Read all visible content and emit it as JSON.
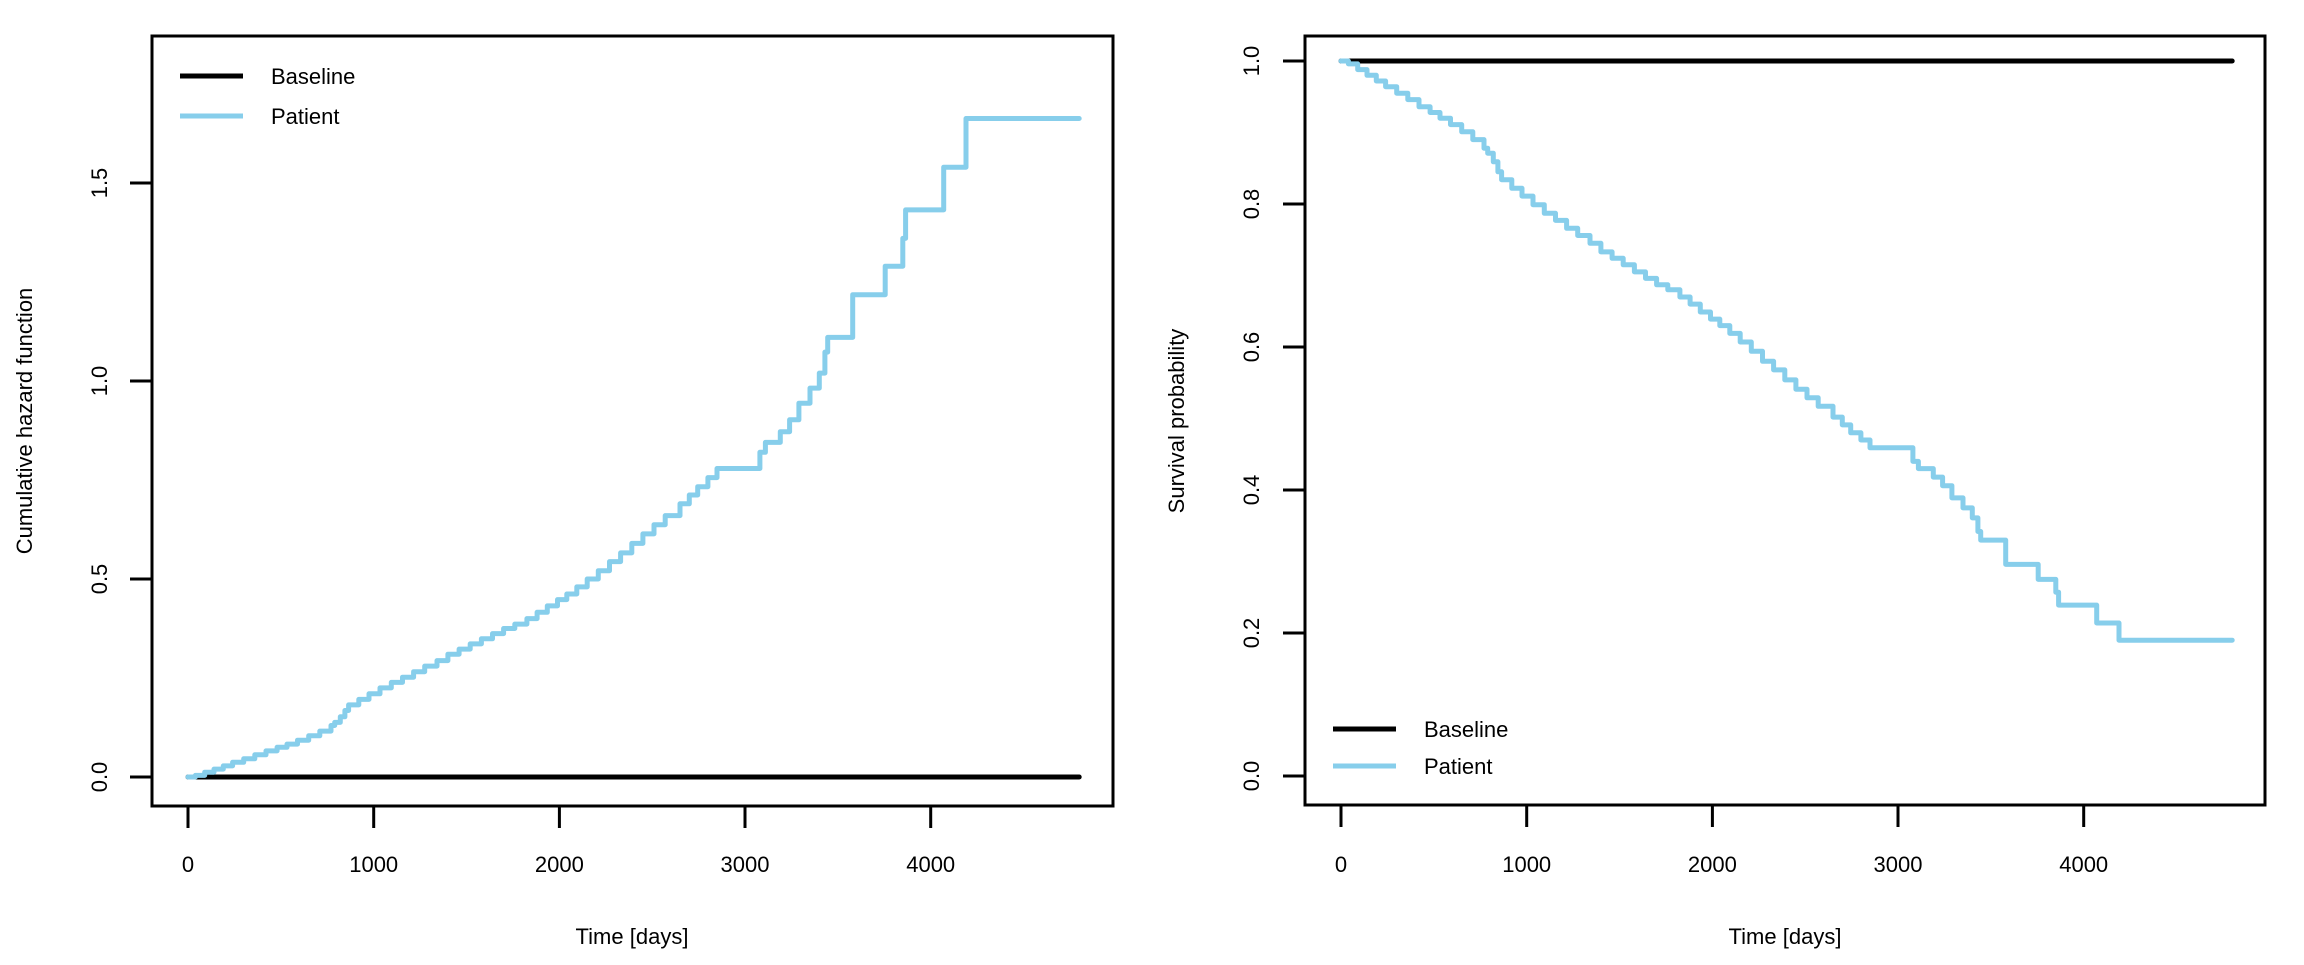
{
  "figure": {
    "background": "#ffffff",
    "line_colors": {
      "baseline": "#000000",
      "patient": "#87CEEB"
    }
  },
  "chart_data": [
    {
      "type": "line",
      "id": "cumulative-hazard",
      "title": "",
      "xlabel": "Time [days]",
      "ylabel": "Cumulative hazard function",
      "xlim": [
        0,
        4800
      ],
      "ylim": [
        0,
        1.88
      ],
      "grid": false,
      "xticks": [
        0,
        1000,
        2000,
        3000,
        4000
      ],
      "xtick_labels": [
        "0",
        "1000",
        "2000",
        "3000",
        "4000"
      ],
      "yticks": [
        0.0,
        0.5,
        1.0,
        1.5
      ],
      "ytick_labels": [
        "0.0",
        "0.5",
        "1.0",
        "1.5"
      ],
      "legend": {
        "position": "top-left",
        "entries": [
          {
            "label": "Baseline",
            "color": "#000000"
          },
          {
            "label": "Patient",
            "color": "#87CEEB"
          }
        ]
      },
      "series": [
        {
          "name": "Baseline",
          "color": "#000000",
          "step": false,
          "points": [
            [
              0,
              0
            ],
            [
              4800,
              0
            ]
          ]
        },
        {
          "name": "Patient",
          "color": "#87CEEB",
          "step": true,
          "points": [
            [
              0,
              0
            ],
            [
              40,
              0.004
            ],
            [
              90,
              0.012
            ],
            [
              140,
              0.02
            ],
            [
              190,
              0.028
            ],
            [
              240,
              0.037
            ],
            [
              300,
              0.046
            ],
            [
              360,
              0.056
            ],
            [
              420,
              0.066
            ],
            [
              480,
              0.075
            ],
            [
              533,
              0.083
            ],
            [
              590,
              0.093
            ],
            [
              650,
              0.104
            ],
            [
              710,
              0.116
            ],
            [
              770,
              0.13
            ],
            [
              790,
              0.138
            ],
            [
              820,
              0.152
            ],
            [
              845,
              0.168
            ],
            [
              865,
              0.182
            ],
            [
              920,
              0.196
            ],
            [
              975,
              0.21
            ],
            [
              1034,
              0.225
            ],
            [
              1095,
              0.239
            ],
            [
              1155,
              0.252
            ],
            [
              1215,
              0.266
            ],
            [
              1275,
              0.28
            ],
            [
              1341,
              0.294
            ],
            [
              1400,
              0.31
            ],
            [
              1460,
              0.323
            ],
            [
              1520,
              0.336
            ],
            [
              1580,
              0.349
            ],
            [
              1640,
              0.362
            ],
            [
              1700,
              0.375
            ],
            [
              1760,
              0.386
            ],
            [
              1825,
              0.4
            ],
            [
              1880,
              0.416
            ],
            [
              1935,
              0.432
            ],
            [
              1990,
              0.448
            ],
            [
              2040,
              0.462
            ],
            [
              2094,
              0.48
            ],
            [
              2150,
              0.5
            ],
            [
              2210,
              0.521
            ],
            [
              2270,
              0.544
            ],
            [
              2330,
              0.566
            ],
            [
              2390,
              0.59
            ],
            [
              2450,
              0.614
            ],
            [
              2510,
              0.637
            ],
            [
              2570,
              0.66
            ],
            [
              2650,
              0.69
            ],
            [
              2700,
              0.712
            ],
            [
              2745,
              0.733
            ],
            [
              2800,
              0.756
            ],
            [
              2849,
              0.779
            ],
            [
              3080,
              0.82
            ],
            [
              3110,
              0.845
            ],
            [
              3190,
              0.872
            ],
            [
              3240,
              0.902
            ],
            [
              3290,
              0.944
            ],
            [
              3350,
              0.982
            ],
            [
              3400,
              1.02
            ],
            [
              3430,
              1.073
            ],
            [
              3445,
              1.11
            ],
            [
              3580,
              1.218
            ],
            [
              3755,
              1.29
            ],
            [
              3850,
              1.36
            ],
            [
              3865,
              1.432
            ],
            [
              4070,
              1.54
            ],
            [
              4190,
              1.663
            ],
            [
              4800,
              1.663
            ]
          ]
        }
      ]
    },
    {
      "type": "line",
      "id": "survival-probability",
      "title": "",
      "xlabel": "Time [days]",
      "ylabel": "Survival probability",
      "xlim": [
        0,
        4800
      ],
      "ylim": [
        0,
        1.04
      ],
      "grid": false,
      "xticks": [
        0,
        1000,
        2000,
        3000,
        4000
      ],
      "xtick_labels": [
        "0",
        "1000",
        "2000",
        "3000",
        "4000"
      ],
      "yticks": [
        0.0,
        0.2,
        0.4,
        0.6,
        0.8,
        1.0
      ],
      "ytick_labels": [
        "0.0",
        "0.2",
        "0.4",
        "0.6",
        "0.8",
        "1.0"
      ],
      "legend": {
        "position": "bottom-left",
        "entries": [
          {
            "label": "Baseline",
            "color": "#000000"
          },
          {
            "label": "Patient",
            "color": "#87CEEB"
          }
        ]
      },
      "series": [
        {
          "name": "Baseline",
          "color": "#000000",
          "step": false,
          "points": [
            [
              0,
              1
            ],
            [
              4800,
              1
            ]
          ]
        },
        {
          "name": "Patient",
          "color": "#87CEEB",
          "step": true,
          "points": [
            [
              0,
              1
            ],
            [
              40,
              0.996
            ],
            [
              90,
              0.988
            ],
            [
              140,
              0.98
            ],
            [
              190,
              0.972
            ],
            [
              240,
              0.964
            ],
            [
              300,
              0.955
            ],
            [
              360,
              0.946
            ],
            [
              420,
              0.936
            ],
            [
              480,
              0.928
            ],
            [
              533,
              0.92
            ],
            [
              590,
              0.911
            ],
            [
              650,
              0.901
            ],
            [
              710,
              0.89
            ],
            [
              770,
              0.878
            ],
            [
              790,
              0.871
            ],
            [
              820,
              0.859
            ],
            [
              845,
              0.845
            ],
            [
              865,
              0.834
            ],
            [
              920,
              0.822
            ],
            [
              975,
              0.811
            ],
            [
              1034,
              0.799
            ],
            [
              1095,
              0.787
            ],
            [
              1155,
              0.777
            ],
            [
              1215,
              0.766
            ],
            [
              1275,
              0.756
            ],
            [
              1341,
              0.745
            ],
            [
              1400,
              0.733
            ],
            [
              1460,
              0.724
            ],
            [
              1520,
              0.715
            ],
            [
              1580,
              0.705
            ],
            [
              1640,
              0.696
            ],
            [
              1700,
              0.687
            ],
            [
              1760,
              0.68
            ],
            [
              1825,
              0.67
            ],
            [
              1880,
              0.66
            ],
            [
              1935,
              0.649
            ],
            [
              1990,
              0.639
            ],
            [
              2040,
              0.63
            ],
            [
              2094,
              0.619
            ],
            [
              2150,
              0.607
            ],
            [
              2210,
              0.594
            ],
            [
              2270,
              0.58
            ],
            [
              2330,
              0.568
            ],
            [
              2390,
              0.554
            ],
            [
              2450,
              0.541
            ],
            [
              2510,
              0.529
            ],
            [
              2570,
              0.517
            ],
            [
              2650,
              0.502
            ],
            [
              2700,
              0.491
            ],
            [
              2745,
              0.48
            ],
            [
              2800,
              0.47
            ],
            [
              2849,
              0.459
            ],
            [
              3080,
              0.44
            ],
            [
              3110,
              0.43
            ],
            [
              3190,
              0.418
            ],
            [
              3240,
              0.406
            ],
            [
              3290,
              0.389
            ],
            [
              3350,
              0.375
            ],
            [
              3400,
              0.361
            ],
            [
              3430,
              0.342
            ],
            [
              3445,
              0.33
            ],
            [
              3580,
              0.296
            ],
            [
              3755,
              0.275
            ],
            [
              3850,
              0.257
            ],
            [
              3865,
              0.239
            ],
            [
              4070,
              0.214
            ],
            [
              4190,
              0.19
            ],
            [
              4800,
              0.19
            ]
          ]
        }
      ]
    }
  ]
}
